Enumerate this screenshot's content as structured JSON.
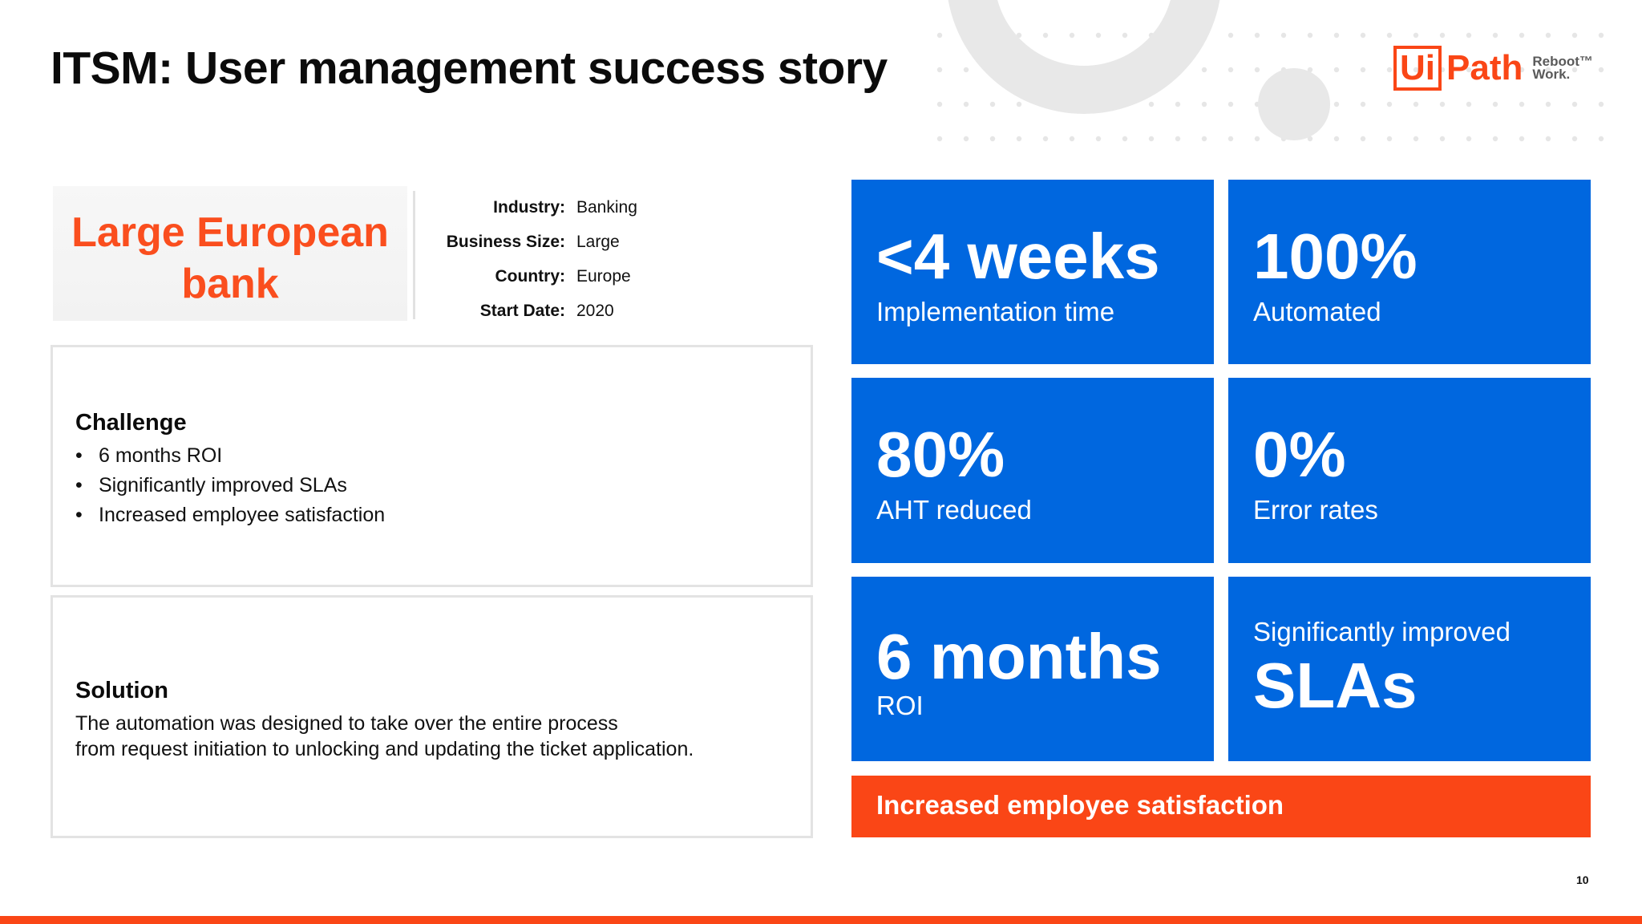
{
  "slide": {
    "title": "ITSM: User management success story",
    "page_number": "10"
  },
  "logo": {
    "ui": "Ui",
    "path": "Path",
    "tagline_1": "Reboot™",
    "tagline_2": "Work."
  },
  "company": {
    "line1": "Large European",
    "line2": "bank"
  },
  "facts": [
    {
      "label": "Industry:",
      "value": "Banking"
    },
    {
      "label": "Business Size:",
      "value": "Large"
    },
    {
      "label": "Country:",
      "value": "Europe"
    },
    {
      "label": "Start Date:",
      "value": "2020"
    }
  ],
  "challenge": {
    "heading": "Challenge",
    "bullet": "•",
    "items": [
      "6 months ROI",
      "Significantly improved SLAs",
      "Increased employee satisfaction"
    ]
  },
  "solution": {
    "heading": "Solution",
    "line1": "The automation was designed to take over the entire process",
    "line2": "from request initiation to unlocking and updating the ticket application."
  },
  "metrics": [
    {
      "value": "<4 weeks",
      "caption": "Implementation time"
    },
    {
      "value": "100%",
      "caption": "Automated"
    },
    {
      "value": "80%",
      "caption": "AHT reduced"
    },
    {
      "value": "0%",
      "caption": "Error rates"
    },
    {
      "value": "6 months",
      "caption": "ROI"
    },
    {
      "value": "SLAs",
      "caption": "Significantly improved"
    }
  ],
  "banner": "Increased employee satisfaction",
  "colors": {
    "accent_orange": "#fa4616",
    "tile_blue": "#0067df",
    "company_orange": "#fa4e1e"
  }
}
